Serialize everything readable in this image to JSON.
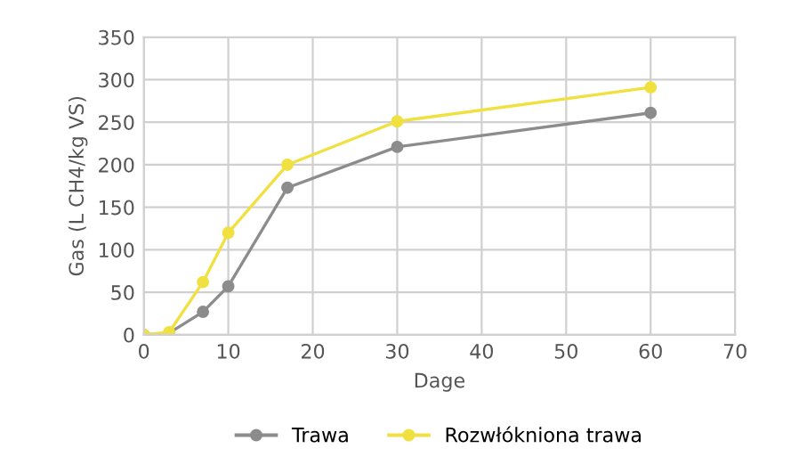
{
  "chart_data": {
    "type": "line",
    "xlabel": "Dage",
    "ylabel": "Gas (L CH4/kg VS)",
    "xlim": [
      0,
      70
    ],
    "xticks": [
      0,
      10,
      20,
      30,
      40,
      50,
      60,
      70
    ],
    "ylim": [
      0,
      350
    ],
    "yticks": [
      0,
      50,
      100,
      150,
      200,
      250,
      300,
      350
    ],
    "grid": true,
    "legend": "bottom",
    "marker": "circle",
    "line_style": "solid",
    "series": [
      {
        "name": "Trawa",
        "color": "#8c8c8c",
        "x": [
          0,
          3,
          7,
          10,
          17,
          30,
          60
        ],
        "values": [
          0,
          2,
          27,
          57,
          173,
          221,
          261
        ]
      },
      {
        "name": "Rozwłókniona trawa",
        "color": "#f0e040",
        "x": [
          0,
          3,
          7,
          10,
          17,
          30,
          60
        ],
        "values": [
          0,
          3,
          62,
          120,
          200,
          251,
          291
        ]
      }
    ]
  }
}
